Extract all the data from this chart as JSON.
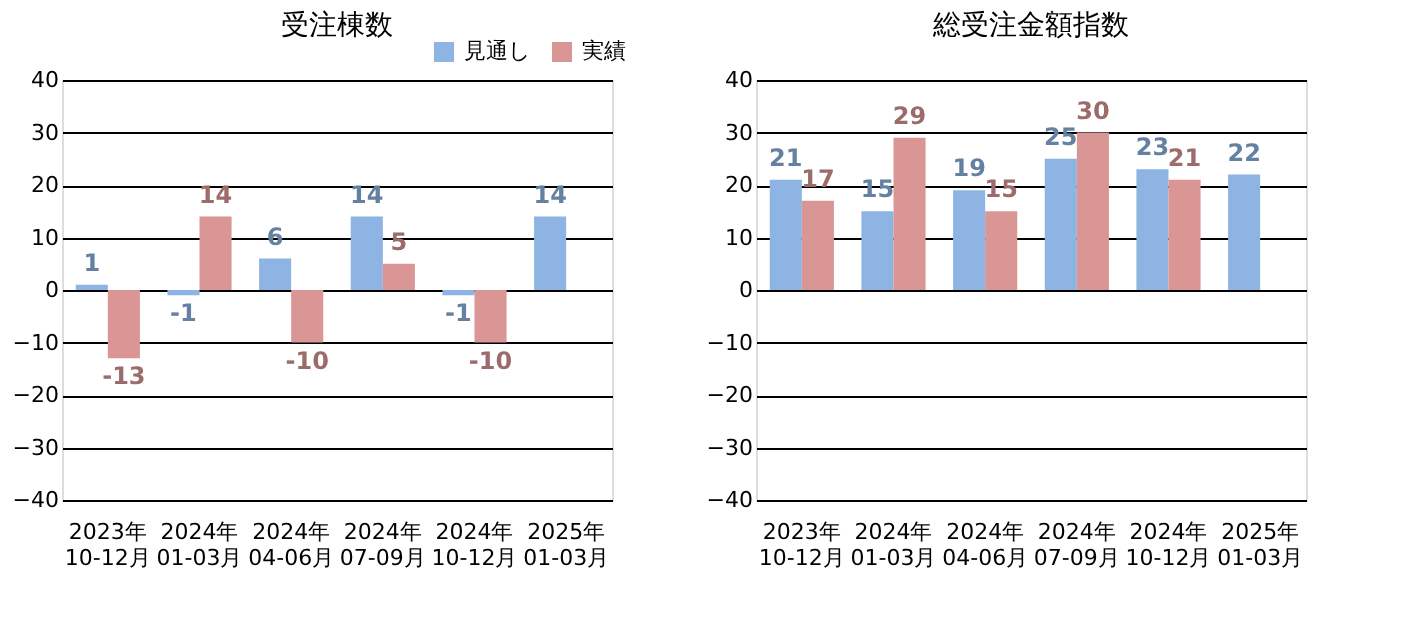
{
  "chart_data": [
    {
      "type": "bar",
      "title": "受注棟数",
      "categories": [
        "2023年\n10-12月",
        "2024年\n01-03月",
        "2024年\n04-06月",
        "2024年\n07-09月",
        "2024年\n10-12月",
        "2025年\n01-03月"
      ],
      "series": [
        {
          "name": "見通し",
          "color": "#8db4e2",
          "values": [
            1,
            -1,
            6,
            14,
            -1,
            14
          ]
        },
        {
          "name": "実績",
          "color": "#d99694",
          "values": [
            -13,
            14,
            -10,
            5,
            -10,
            null
          ]
        }
      ],
      "ylim": [
        -40,
        40
      ],
      "yticks": [
        -40,
        -30,
        -20,
        -10,
        0,
        10,
        20,
        30,
        40
      ],
      "grid": "y",
      "legend": "top right",
      "data_labels": true
    },
    {
      "type": "bar",
      "title": "総受注金額指数",
      "categories": [
        "2023年\n10-12月",
        "2024年\n01-03月",
        "2024年\n04-06月",
        "2024年\n07-09月",
        "2024年\n10-12月",
        "2025年\n01-03月"
      ],
      "series": [
        {
          "name": "見通し",
          "color": "#8db4e2",
          "values": [
            21,
            15,
            19,
            25,
            23,
            22
          ]
        },
        {
          "name": "実績",
          "color": "#d99694",
          "values": [
            17,
            29,
            15,
            30,
            21,
            null
          ]
        }
      ],
      "ylim": [
        -40,
        40
      ],
      "yticks": [
        -40,
        -30,
        -20,
        -10,
        0,
        10,
        20,
        30,
        40
      ],
      "grid": "y",
      "legend": "top right",
      "data_labels": true
    }
  ]
}
